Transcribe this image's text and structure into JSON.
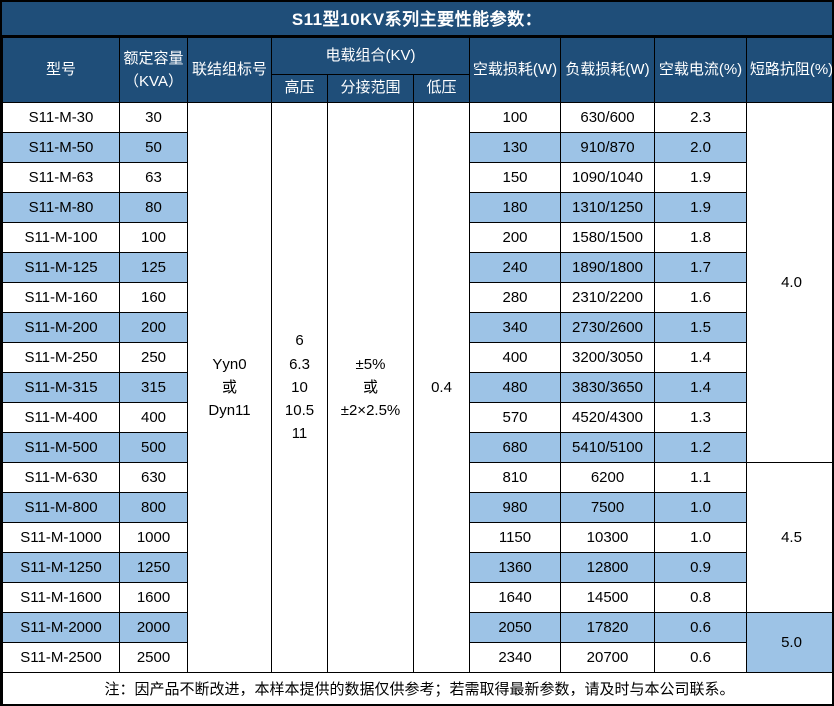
{
  "title": "S11型10KV系列主要性能参数：",
  "header": {
    "model": "型号",
    "capacity": "额定容量\n（KVA）",
    "connection": "联结组标号",
    "load_combo": "电载组合(KV)",
    "hv": "高压",
    "tap_range": "分接范围",
    "lv": "低压",
    "no_load_loss": "空载损耗(W)",
    "load_loss": "负载损耗(W)",
    "no_load_current": "空载电流(%)",
    "impedance": "短路抗阻(%)"
  },
  "merged": {
    "connection": "Yyn0\n或\nDyn11",
    "hv": "6\n6.3\n10\n10.5\n11",
    "tap_range": "±5%\n或\n±2×2.5%",
    "lv": "0.4"
  },
  "impedance_groups": [
    {
      "value": "4.0",
      "span": 12
    },
    {
      "value": "4.5",
      "span": 5
    },
    {
      "value": "5.0",
      "span": 2
    }
  ],
  "rows": [
    {
      "model": "S11-M-30",
      "capacity": "30",
      "no_load_loss": "100",
      "load_loss": "630/600",
      "no_load_current": "2.3"
    },
    {
      "model": "S11-M-50",
      "capacity": "50",
      "no_load_loss": "130",
      "load_loss": "910/870",
      "no_load_current": "2.0"
    },
    {
      "model": "S11-M-63",
      "capacity": "63",
      "no_load_loss": "150",
      "load_loss": "1090/1040",
      "no_load_current": "1.9"
    },
    {
      "model": "S11-M-80",
      "capacity": "80",
      "no_load_loss": "180",
      "load_loss": "1310/1250",
      "no_load_current": "1.9"
    },
    {
      "model": "S11-M-100",
      "capacity": "100",
      "no_load_loss": "200",
      "load_loss": "1580/1500",
      "no_load_current": "1.8"
    },
    {
      "model": "S11-M-125",
      "capacity": "125",
      "no_load_loss": "240",
      "load_loss": "1890/1800",
      "no_load_current": "1.7"
    },
    {
      "model": "S11-M-160",
      "capacity": "160",
      "no_load_loss": "280",
      "load_loss": "2310/2200",
      "no_load_current": "1.6"
    },
    {
      "model": "S11-M-200",
      "capacity": "200",
      "no_load_loss": "340",
      "load_loss": "2730/2600",
      "no_load_current": "1.5"
    },
    {
      "model": "S11-M-250",
      "capacity": "250",
      "no_load_loss": "400",
      "load_loss": "3200/3050",
      "no_load_current": "1.4"
    },
    {
      "model": "S11-M-315",
      "capacity": "315",
      "no_load_loss": "480",
      "load_loss": "3830/3650",
      "no_load_current": "1.4"
    },
    {
      "model": "S11-M-400",
      "capacity": "400",
      "no_load_loss": "570",
      "load_loss": "4520/4300",
      "no_load_current": "1.3"
    },
    {
      "model": "S11-M-500",
      "capacity": "500",
      "no_load_loss": "680",
      "load_loss": "5410/5100",
      "no_load_current": "1.2"
    },
    {
      "model": "S11-M-630",
      "capacity": "630",
      "no_load_loss": "810",
      "load_loss": "6200",
      "no_load_current": "1.1"
    },
    {
      "model": "S11-M-800",
      "capacity": "800",
      "no_load_loss": "980",
      "load_loss": "7500",
      "no_load_current": "1.0"
    },
    {
      "model": "S11-M-1000",
      "capacity": "1000",
      "no_load_loss": "1150",
      "load_loss": "10300",
      "no_load_current": "1.0"
    },
    {
      "model": "S11-M-1250",
      "capacity": "1250",
      "no_load_loss": "1360",
      "load_loss": "12800",
      "no_load_current": "0.9"
    },
    {
      "model": "S11-M-1600",
      "capacity": "1600",
      "no_load_loss": "1640",
      "load_loss": "14500",
      "no_load_current": "0.8"
    },
    {
      "model": "S11-M-2000",
      "capacity": "2000",
      "no_load_loss": "2050",
      "load_loss": "17820",
      "no_load_current": "0.6"
    },
    {
      "model": "S11-M-2500",
      "capacity": "2500",
      "no_load_loss": "2340",
      "load_loss": "20700",
      "no_load_current": "0.6"
    }
  ],
  "note": "注：因产品不断改进，本样本提供的数据仅供参考；若需取得最新参数，请及时与本公司联系。",
  "colors": {
    "header_bg": "#1F4E79",
    "band_bg": "#9DC3E6",
    "border_c": "#000000",
    "header_text": "#FFFFFF",
    "body_text": "#000000"
  }
}
